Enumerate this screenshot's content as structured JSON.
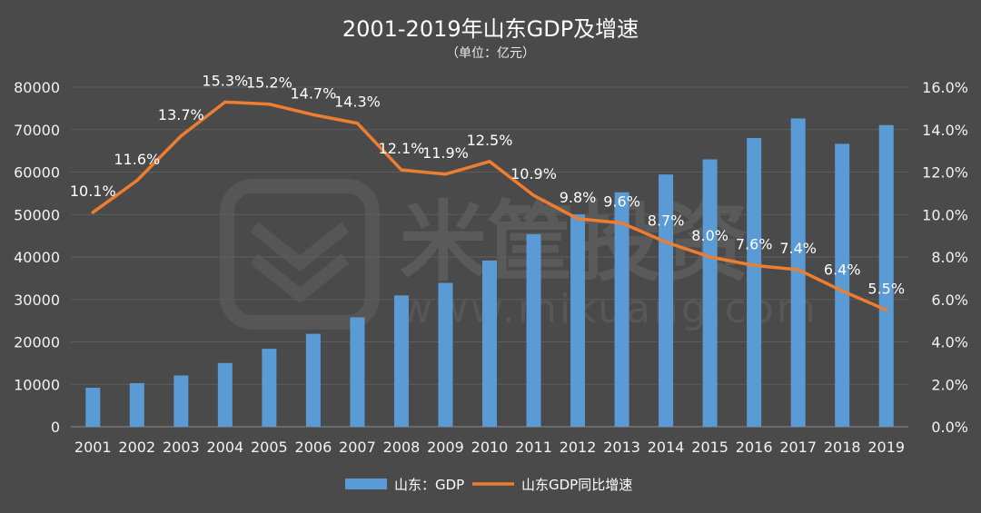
{
  "chart_data": {
    "type": "bar",
    "title": "2001-2019年山东GDP及增速",
    "subtitle": "（单位：亿元）",
    "categories": [
      "2001",
      "2002",
      "2003",
      "2004",
      "2005",
      "2006",
      "2007",
      "2008",
      "2009",
      "2010",
      "2011",
      "2012",
      "2013",
      "2014",
      "2015",
      "2016",
      "2017",
      "2018",
      "2019"
    ],
    "series": [
      {
        "name": "山东：GDP",
        "type": "bar",
        "axis": "left",
        "color": "#5b9bd5",
        "values": [
          9195,
          10275,
          12078,
          15022,
          18367,
          21900,
          25777,
          30933,
          33897,
          39170,
          45362,
          50013,
          55230,
          59427,
          63002,
          68024,
          72634,
          66649,
          71068
        ]
      },
      {
        "name": "山东GDP同比增速",
        "type": "line",
        "axis": "right",
        "color": "#ed7d31",
        "values": [
          10.1,
          11.6,
          13.7,
          15.3,
          15.2,
          14.7,
          14.3,
          12.1,
          11.9,
          12.5,
          10.9,
          9.8,
          9.6,
          8.7,
          8.0,
          7.6,
          7.4,
          6.4,
          5.5
        ],
        "labels": [
          "10.1%",
          "11.6%",
          "13.7%",
          "15.3%",
          "15.2%",
          "14.7%",
          "14.3%",
          "12.1%",
          "11.9%",
          "12.5%",
          "10.9%",
          "9.8%",
          "9.6%",
          "8.7%",
          "8.0%",
          "7.6%",
          "7.4%",
          "6.4%",
          "5.5%"
        ]
      }
    ],
    "y_left": {
      "min": 0,
      "max": 80000,
      "ticks": [
        "0",
        "10000",
        "20000",
        "30000",
        "40000",
        "50000",
        "60000",
        "70000",
        "80000"
      ]
    },
    "y_right": {
      "min": 0,
      "max": 16,
      "ticks": [
        "0.0%",
        "2.0%",
        "4.0%",
        "6.0%",
        "8.0%",
        "10.0%",
        "12.0%",
        "14.0%",
        "16.0%"
      ]
    },
    "grid": true,
    "legend": "bottom-center"
  },
  "watermark": {
    "text": "米筐投资",
    "url": "www.mikuang.com"
  }
}
